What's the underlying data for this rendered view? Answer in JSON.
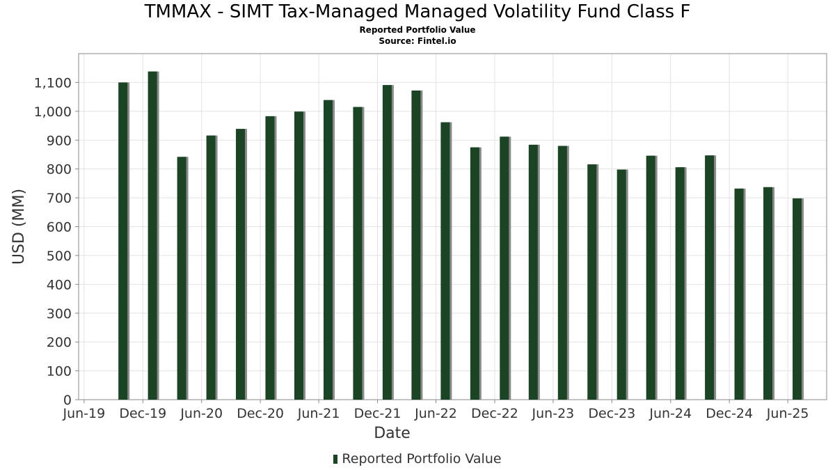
{
  "title": "TMMAX - SIMT Tax-Managed Managed Volatility Fund Class F",
  "subtitle": "Reported Portfolio Value",
  "source": "Source: Fintel.io",
  "colors": {
    "bar": "#1a4424",
    "bar_shadow": "#8a8a8a",
    "grid": "#e2e2e2",
    "frame": "#888888"
  },
  "chart_data": {
    "type": "bar",
    "title": "TMMAX - SIMT Tax-Managed Managed Volatility Fund Class F",
    "subtitle": "Reported Portfolio Value",
    "xlabel": "Date",
    "ylabel": "USD (MM)",
    "ylim": [
      0,
      1200
    ],
    "yticks": [
      0,
      100,
      200,
      300,
      400,
      500,
      600,
      700,
      800,
      900,
      1000,
      1100
    ],
    "ytick_labels": [
      "0",
      "100",
      "200",
      "300",
      "400",
      "500",
      "600",
      "700",
      "800",
      "900",
      "1,000",
      "1,100"
    ],
    "xlim": [
      "2019-05-15",
      "2025-09-30"
    ],
    "xticks": [
      {
        "date": "2019-06-01",
        "label": "Jun-19"
      },
      {
        "date": "2019-12-01",
        "label": "Dec-19"
      },
      {
        "date": "2020-06-01",
        "label": "Jun-20"
      },
      {
        "date": "2020-12-01",
        "label": "Dec-20"
      },
      {
        "date": "2021-06-01",
        "label": "Jun-21"
      },
      {
        "date": "2021-12-01",
        "label": "Dec-21"
      },
      {
        "date": "2022-06-01",
        "label": "Jun-22"
      },
      {
        "date": "2022-12-01",
        "label": "Dec-22"
      },
      {
        "date": "2023-06-01",
        "label": "Jun-23"
      },
      {
        "date": "2023-12-01",
        "label": "Dec-23"
      },
      {
        "date": "2024-06-01",
        "label": "Jun-24"
      },
      {
        "date": "2024-12-01",
        "label": "Dec-24"
      },
      {
        "date": "2025-06-01",
        "label": "Jun-25"
      }
    ],
    "grid": true,
    "legend_position": "bottom-center",
    "series": [
      {
        "name": "Reported Portfolio Value",
        "points": [
          {
            "x": "2019-09-30",
            "y": 1100
          },
          {
            "x": "2019-12-31",
            "y": 1138
          },
          {
            "x": "2020-03-31",
            "y": 842
          },
          {
            "x": "2020-06-30",
            "y": 916
          },
          {
            "x": "2020-09-30",
            "y": 939
          },
          {
            "x": "2020-12-31",
            "y": 983
          },
          {
            "x": "2021-03-31",
            "y": 999
          },
          {
            "x": "2021-06-30",
            "y": 1039
          },
          {
            "x": "2021-09-30",
            "y": 1015
          },
          {
            "x": "2021-12-31",
            "y": 1091
          },
          {
            "x": "2022-03-31",
            "y": 1072
          },
          {
            "x": "2022-06-30",
            "y": 962
          },
          {
            "x": "2022-09-30",
            "y": 875
          },
          {
            "x": "2022-12-31",
            "y": 912
          },
          {
            "x": "2023-03-31",
            "y": 884
          },
          {
            "x": "2023-06-30",
            "y": 880
          },
          {
            "x": "2023-09-30",
            "y": 816
          },
          {
            "x": "2023-12-31",
            "y": 798
          },
          {
            "x": "2024-03-31",
            "y": 846
          },
          {
            "x": "2024-06-30",
            "y": 806
          },
          {
            "x": "2024-09-30",
            "y": 847
          },
          {
            "x": "2024-12-31",
            "y": 732
          },
          {
            "x": "2025-03-31",
            "y": 737
          },
          {
            "x": "2025-06-30",
            "y": 698
          }
        ]
      }
    ]
  }
}
